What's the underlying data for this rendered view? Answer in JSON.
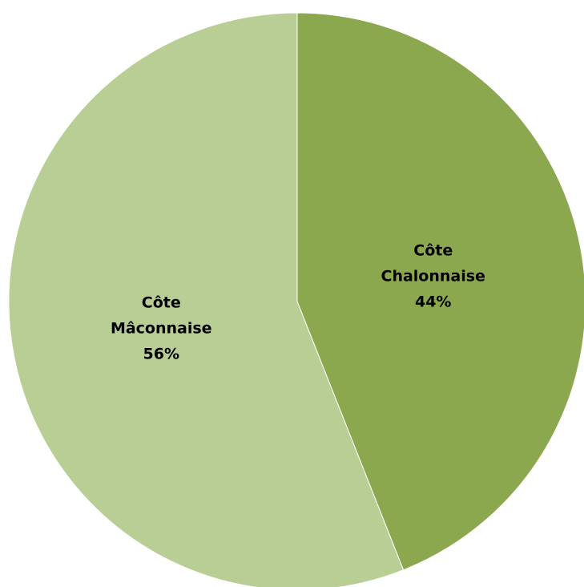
{
  "chart_data": {
    "type": "pie",
    "title": "",
    "start_angle_deg": 0,
    "direction": "clockwise",
    "legend": "none",
    "slices": [
      {
        "name": "Côte Chalonnaise",
        "label_lines": [
          "Côte",
          "Chalonnaise"
        ],
        "value": 44,
        "percent_label": "44%",
        "color": "#8CA84F"
      },
      {
        "name": "Côte Mâconnaise",
        "label_lines": [
          "Côte",
          "Mâconnaise"
        ],
        "value": 56,
        "percent_label": "56%",
        "color": "#B8CE95"
      }
    ]
  }
}
